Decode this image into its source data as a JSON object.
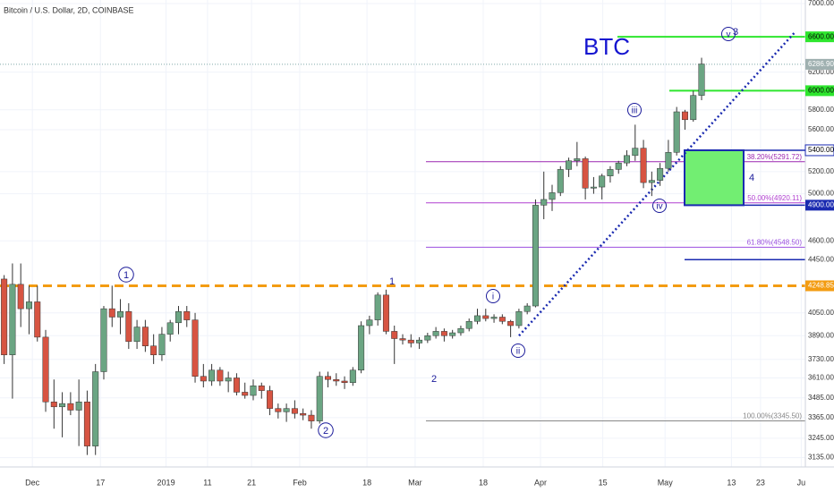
{
  "chart_data": {
    "type": "candlestick",
    "title": "Bitcoin / U.S. Dollar, 2D, COINBASE",
    "up_color": "#6ba583",
    "down_color": "#d75442",
    "log_scale": true,
    "grid": true,
    "xlim": [
      -0.5,
      96.5
    ],
    "ylim": [
      3084,
      7044
    ],
    "xticks": [
      {
        "value": 3.4,
        "label": "Dec"
      },
      {
        "value": 11.6,
        "label": "17"
      },
      {
        "value": 19.5,
        "label": "2019"
      },
      {
        "value": 24.5,
        "label": "11"
      },
      {
        "value": 29.8,
        "label": "21"
      },
      {
        "value": 35.6,
        "label": "Feb"
      },
      {
        "value": 43.7,
        "label": "18"
      },
      {
        "value": 49.5,
        "label": "Mar"
      },
      {
        "value": 57.7,
        "label": "18"
      },
      {
        "value": 64.6,
        "label": "Apr"
      },
      {
        "value": 72.1,
        "label": "15"
      },
      {
        "value": 79.6,
        "label": "May"
      },
      {
        "value": 87.6,
        "label": "13"
      },
      {
        "value": 91.1,
        "label": "23"
      },
      {
        "value": 96.0,
        "label": "Ju"
      }
    ],
    "yticks": [
      {
        "value": 7000,
        "label": "7000.00"
      },
      {
        "value": 6200,
        "label": "6200.00"
      },
      {
        "value": 5800,
        "label": "5800.00"
      },
      {
        "value": 5600,
        "label": "5600.00"
      },
      {
        "value": 5200,
        "label": "5200.00"
      },
      {
        "value": 5000,
        "label": "5000.00"
      },
      {
        "value": 4600,
        "label": "4600.00"
      },
      {
        "value": 4050,
        "label": "4050.00"
      },
      {
        "value": 3890,
        "label": "3890.00"
      },
      {
        "value": 3730,
        "label": "3730.00"
      },
      {
        "value": 3610,
        "label": "3610.00"
      },
      {
        "value": 3485,
        "label": "3485.00"
      },
      {
        "value": 3365,
        "label": "3365.00"
      },
      {
        "value": 3245,
        "label": "3245.00"
      },
      {
        "value": 3135,
        "label": "3135.00"
      }
    ],
    "open": [
      4300,
      3760,
      4260,
      4080,
      4130,
      3880,
      3460,
      3430,
      3450,
      3410,
      3460,
      3200,
      3650,
      4080,
      4020,
      4060,
      3850,
      3950,
      3820,
      3760,
      3900,
      3980,
      4060,
      4000,
      3620,
      3590,
      3660,
      3590,
      3610,
      3520,
      3500,
      3560,
      3530,
      3420,
      3400,
      3420,
      3390,
      3380,
      3345,
      3620,
      3600,
      3590,
      3580,
      3660,
      3960,
      4000,
      4180,
      3920,
      3870,
      3860,
      3840,
      3860,
      3890,
      3920,
      3890,
      3910,
      3940,
      3990,
      4030,
      4010,
      4020,
      3990,
      3960,
      4060,
      4100,
      4900,
      4950,
      5010,
      5220,
      5300,
      5320,
      5050,
      5060,
      5160,
      5220,
      5280,
      5350,
      5420,
      5100,
      5120,
      5230,
      5380,
      5780,
      5700,
      5950
    ],
    "high": [
      4330,
      4420,
      4420,
      4250,
      4250,
      3930,
      3600,
      3520,
      3520,
      3600,
      3530,
      3700,
      4100,
      4250,
      4150,
      4120,
      4000,
      4000,
      3900,
      3950,
      4000,
      4100,
      4100,
      4050,
      3700,
      3700,
      3680,
      3650,
      3640,
      3580,
      3600,
      3580,
      3560,
      3450,
      3450,
      3470,
      3420,
      3410,
      3650,
      3650,
      3640,
      3620,
      3680,
      3990,
      4030,
      4200,
      4220,
      3960,
      3900,
      3900,
      3880,
      3910,
      3950,
      3940,
      3930,
      3960,
      4010,
      4080,
      4080,
      4040,
      4040,
      4000,
      4080,
      4120,
      4950,
      5200,
      5080,
      5250,
      5330,
      5480,
      5340,
      5150,
      5180,
      5250,
      5300,
      5400,
      5650,
      5500,
      5200,
      5280,
      5500,
      5830,
      5800,
      6000,
      6360
    ],
    "low": [
      3700,
      3480,
      3950,
      3900,
      3850,
      3400,
      3300,
      3250,
      3380,
      3200,
      3150,
      3150,
      3600,
      3950,
      3900,
      3800,
      3800,
      3780,
      3700,
      3720,
      3850,
      3900,
      3950,
      3580,
      3550,
      3560,
      3560,
      3520,
      3500,
      3480,
      3470,
      3480,
      3380,
      3360,
      3340,
      3360,
      3350,
      3300,
      3330,
      3550,
      3560,
      3540,
      3560,
      3640,
      3900,
      3960,
      3900,
      3700,
      3830,
      3810,
      3800,
      3840,
      3870,
      3850,
      3870,
      3890,
      3920,
      3970,
      3990,
      3980,
      3970,
      3880,
      3940,
      4040,
      4090,
      4780,
      4850,
      4980,
      5150,
      5250,
      4950,
      5000,
      4950,
      5100,
      5180,
      5250,
      5300,
      5050,
      4980,
      5070,
      5200,
      5350,
      5600,
      5680,
      5900
    ],
    "close": [
      3760,
      4260,
      4080,
      4130,
      3880,
      3460,
      3430,
      3450,
      3410,
      3460,
      3200,
      3650,
      4080,
      4020,
      4060,
      3850,
      3950,
      3820,
      3760,
      3900,
      3980,
      4060,
      4000,
      3620,
      3590,
      3660,
      3590,
      3610,
      3520,
      3500,
      3560,
      3530,
      3420,
      3400,
      3420,
      3390,
      3380,
      3345,
      3620,
      3600,
      3590,
      3580,
      3660,
      3960,
      4000,
      4180,
      3920,
      3870,
      3860,
      3840,
      3860,
      3890,
      3920,
      3890,
      3910,
      3940,
      3990,
      4030,
      4010,
      4020,
      3990,
      3960,
      4060,
      4100,
      4900,
      4950,
      5010,
      5220,
      5300,
      5320,
      5050,
      5060,
      5160,
      5220,
      5280,
      5350,
      5420,
      5100,
      5120,
      5230,
      5380,
      5780,
      5700,
      5950,
      6290
    ],
    "levels": [
      {
        "value": 6600,
        "label": "6600.00",
        "color": "#2ee62e"
      },
      {
        "value": 6286.9,
        "label": "6286.90",
        "color": "#7fa6a6"
      },
      {
        "value": 6000,
        "label": "6000.00",
        "color": "#2ee62e"
      },
      {
        "value": 5400,
        "label": "5400.00",
        "color": "#1a2ab0"
      },
      {
        "value": 4900,
        "label": "4900.00",
        "color": "#1a2ab0"
      },
      {
        "value": 4450,
        "label": "4450.00",
        "color": "#1a2ab0"
      },
      {
        "value": 4248.85,
        "label": "4248.85",
        "color": "#f39c12"
      }
    ],
    "fib": [
      {
        "value": 5291.72,
        "label": "38.20%(5291.72)",
        "color": "#9c27b0"
      },
      {
        "value": 4920.11,
        "label": "50.00%(4920.11)",
        "color": "#b040d0"
      },
      {
        "value": 4548.5,
        "label": "61.80%(4548.50)",
        "color": "#9c50e0"
      },
      {
        "value": 3345.5,
        "label": "100.00%(3345.50)",
        "color": "#888888"
      }
    ],
    "zone": [
      5400,
      4900
    ],
    "trendline": [
      3890,
      6650
    ],
    "annotations": [
      "BTC",
      "1",
      "2",
      "1",
      "2",
      "i",
      "ii",
      "iii",
      "iv",
      "v",
      "3",
      "4"
    ]
  }
}
